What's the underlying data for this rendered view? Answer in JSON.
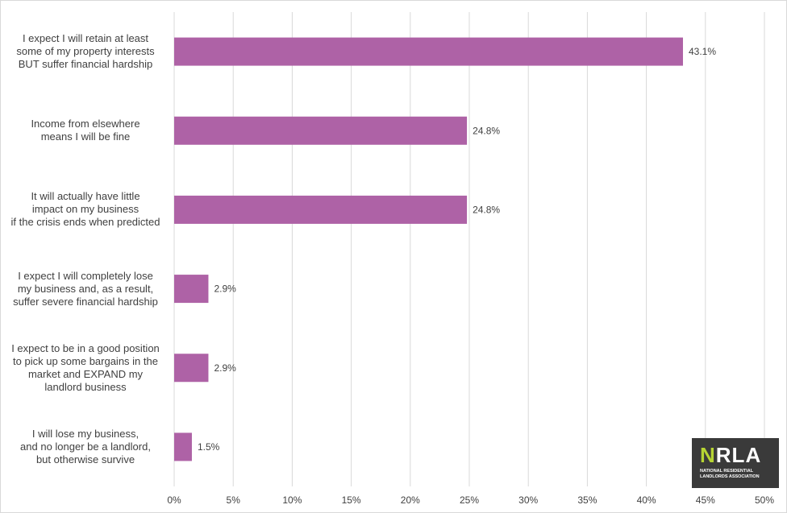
{
  "chart_data": {
    "type": "bar",
    "orientation": "horizontal",
    "categories": [
      "I expect I will retain at least some of my property interests BUT suffer financial hardship",
      "Income from elsewhere means I will be fine",
      "It will actually have little impact on my business if the crisis ends when predicted",
      "I expect I will completely lose my business and, as a result, suffer severe financial hardship",
      "I expect to be in a good position to pick up some bargains in the market and EXPAND my landlord business",
      "I will lose my business, and no longer be a landlord, but otherwise survive"
    ],
    "category_lines": [
      [
        "I expect I will retain at least",
        "some of my property interests",
        "BUT suffer financial hardship"
      ],
      [
        "Income from elsewhere",
        "means I will be fine"
      ],
      [
        "It will actually have little",
        "impact on my business",
        "if the crisis ends when predicted"
      ],
      [
        "I expect I will completely lose",
        "my business and, as a result,",
        "suffer severe financial hardship"
      ],
      [
        "I expect to be in a good position",
        "to pick up some bargains in the",
        "market and EXPAND my",
        "landlord business"
      ],
      [
        "I will lose my business,",
        "and no longer be a landlord,",
        "but otherwise survive"
      ]
    ],
    "values": [
      43.1,
      24.8,
      24.8,
      2.9,
      2.9,
      1.5
    ],
    "data_labels": [
      "43.1%",
      "24.8%",
      "24.8%",
      "2.9%",
      "2.9%",
      "1.5%"
    ],
    "xlim": [
      0,
      50
    ],
    "x_ticks": [
      0,
      5,
      10,
      15,
      20,
      25,
      30,
      35,
      40,
      45,
      50
    ],
    "x_tick_labels": [
      "0%",
      "5%",
      "10%",
      "15%",
      "20%",
      "25%",
      "30%",
      "35%",
      "40%",
      "45%",
      "50%"
    ],
    "grid": "vertical",
    "bar_color": "#ae62a6",
    "gridline_color": "#d9d9d9",
    "label_color": "#404040"
  },
  "logo": {
    "mark_n": "N",
    "mark_rest": "RLA",
    "subtitle": "NATIONAL RESIDENTIAL LANDLORDS ASSOCIATION",
    "background": "#3a3a3a",
    "accent": "#b7d433"
  }
}
